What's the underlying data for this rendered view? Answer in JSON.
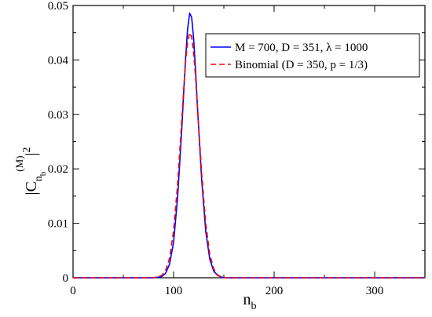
{
  "chart_data": {
    "type": "line",
    "xlabel": {
      "main": "n",
      "sub": "b"
    },
    "ylabel": {
      "prefix": "|C",
      "sub": "n",
      "subsub": "b",
      "sup": "(M)",
      "suffix": "|",
      "power": "2"
    },
    "xlim": [
      0,
      350
    ],
    "ylim": [
      0,
      0.05
    ],
    "xticks": [
      0,
      100,
      200,
      300
    ],
    "xtick_labels": [
      "0",
      "100",
      "200",
      "300"
    ],
    "yticks": [
      0,
      0.01,
      0.02,
      0.03,
      0.04,
      0.05
    ],
    "ytick_labels": [
      "0",
      "0.01",
      "0.02",
      "0.03",
      "0.04",
      "0.05"
    ],
    "grid": false,
    "legend_position": "top-right",
    "series": [
      {
        "name": "M = 700, D = 351, λ = 1000",
        "color": "#0000ff",
        "style": "solid",
        "x": [
          0,
          80,
          88,
          92,
          96,
          100,
          104,
          108,
          110,
          112,
          114,
          116,
          118,
          120,
          122,
          124,
          128,
          132,
          136,
          140,
          144,
          148,
          152,
          160,
          200,
          350
        ],
        "y": [
          0,
          0,
          0.0002,
          0.0008,
          0.0025,
          0.0065,
          0.0148,
          0.0268,
          0.0338,
          0.0405,
          0.0458,
          0.0486,
          0.0478,
          0.0438,
          0.0376,
          0.0305,
          0.0178,
          0.0085,
          0.0034,
          0.0012,
          0.0004,
          0.0001,
          0,
          0,
          0,
          0
        ]
      },
      {
        "name": "Binomial (D = 350, p = 1/3)",
        "color": "#ff0000",
        "style": "dashed",
        "x": [
          0,
          80,
          88,
          92,
          96,
          100,
          104,
          108,
          110,
          112,
          114,
          116,
          118,
          120,
          122,
          124,
          128,
          132,
          136,
          140,
          144,
          148,
          152,
          160,
          200,
          350
        ],
        "y": [
          0,
          0,
          0.0004,
          0.0013,
          0.0036,
          0.0086,
          0.0172,
          0.0285,
          0.0345,
          0.0398,
          0.0434,
          0.045,
          0.0442,
          0.0412,
          0.0365,
          0.0306,
          0.019,
          0.0099,
          0.0043,
          0.0016,
          0.0005,
          0.0001,
          0,
          0,
          0,
          0
        ]
      }
    ]
  }
}
